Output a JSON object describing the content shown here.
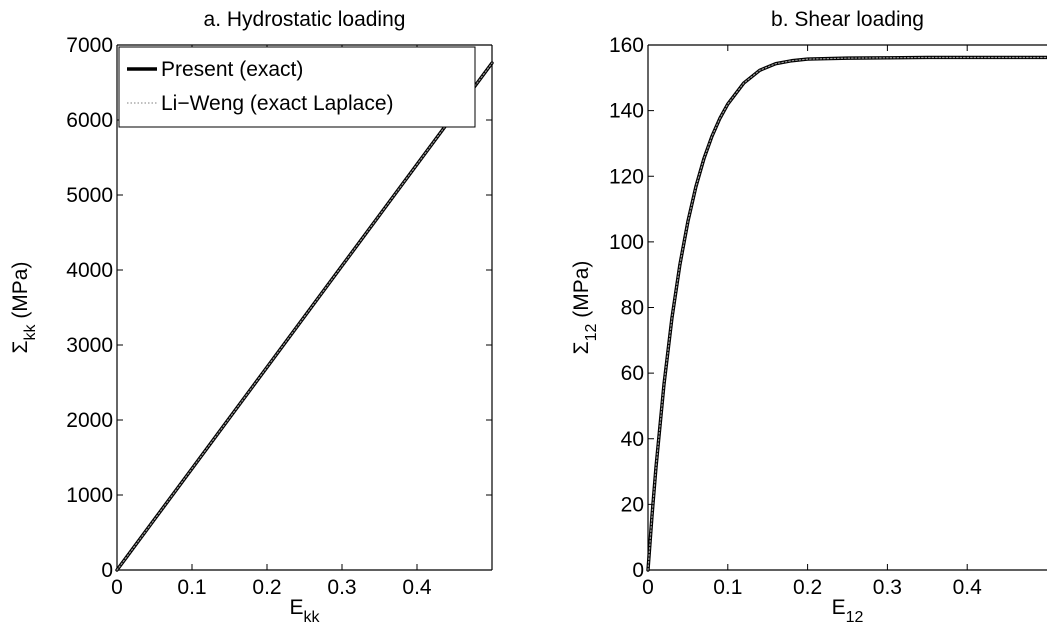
{
  "chart_data": [
    {
      "type": "line",
      "title": "a. Hydrostatic loading",
      "xlabel": {
        "main": "E",
        "sub": "kk",
        "suffix": ""
      },
      "ylabel": {
        "main": "Σ",
        "sub": "kk",
        "suffix": " (MPa)"
      },
      "xlim": [
        0,
        0.5
      ],
      "ylim": [
        0,
        7000
      ],
      "xticks": [
        0,
        0.1,
        0.2,
        0.3,
        0.4
      ],
      "xtick_labels": [
        "0",
        "0.1",
        "0.2",
        "0.3",
        "0.4"
      ],
      "yticks": [
        0,
        1000,
        2000,
        3000,
        4000,
        5000,
        6000,
        7000
      ],
      "ytick_labels": [
        "0",
        "1000",
        "2000",
        "3000",
        "4000",
        "5000",
        "6000",
        "7000"
      ],
      "grid": false,
      "legend": {
        "position": "top-left",
        "entries": [
          "Present (exact)",
          "Li−Weng (exact Laplace)"
        ]
      },
      "series": [
        {
          "name": "Present (exact)",
          "style": "solid",
          "color": "#000000",
          "x": [
            0,
            0.05,
            0.1,
            0.15,
            0.2,
            0.25,
            0.3,
            0.35,
            0.4,
            0.45,
            0.5
          ],
          "y": [
            0,
            676,
            1352,
            2028,
            2704,
            3380,
            4056,
            4732,
            5408,
            6084,
            6760
          ]
        },
        {
          "name": "Li−Weng (exact Laplace)",
          "style": "dotted",
          "color": "#999999",
          "x": [
            0,
            0.05,
            0.1,
            0.15,
            0.2,
            0.25,
            0.3,
            0.35,
            0.4,
            0.45,
            0.5
          ],
          "y": [
            0,
            676,
            1352,
            2028,
            2704,
            3380,
            4056,
            4732,
            5408,
            6084,
            6760
          ]
        }
      ]
    },
    {
      "type": "line",
      "title": "b. Shear loading",
      "xlabel": {
        "main": "E",
        "sub": "12",
        "suffix": ""
      },
      "ylabel": {
        "main": "Σ",
        "sub": "12",
        "suffix": " (MPa)"
      },
      "xlim": [
        0,
        0.5
      ],
      "ylim": [
        0,
        160
      ],
      "xticks": [
        0,
        0.1,
        0.2,
        0.3,
        0.4
      ],
      "xtick_labels": [
        "0",
        "0.1",
        "0.2",
        "0.3",
        "0.4"
      ],
      "yticks": [
        0,
        20,
        40,
        60,
        80,
        100,
        120,
        140,
        160
      ],
      "ytick_labels": [
        "0",
        "20",
        "40",
        "60",
        "80",
        "100",
        "120",
        "140",
        "160"
      ],
      "grid": false,
      "series": [
        {
          "name": "Present (exact)",
          "style": "solid",
          "color": "#000000",
          "x": [
            0,
            0.005,
            0.01,
            0.02,
            0.03,
            0.04,
            0.05,
            0.06,
            0.07,
            0.08,
            0.09,
            0.1,
            0.12,
            0.14,
            0.16,
            0.18,
            0.2,
            0.25,
            0.3,
            0.35,
            0.4,
            0.45,
            0.5
          ],
          "y": [
            0,
            16.5,
            31.3,
            56.5,
            76.8,
            93.1,
            106.2,
            116.8,
            125.3,
            132.1,
            137.6,
            142.0,
            148.4,
            152.3,
            154.3,
            155.2,
            155.7,
            156.0,
            156.1,
            156.2,
            156.2,
            156.2,
            156.2
          ]
        },
        {
          "name": "Li−Weng (exact Laplace)",
          "style": "dotted",
          "color": "#999999",
          "x": [
            0,
            0.005,
            0.01,
            0.02,
            0.03,
            0.04,
            0.05,
            0.06,
            0.07,
            0.08,
            0.09,
            0.1,
            0.12,
            0.14,
            0.16,
            0.18,
            0.2,
            0.25,
            0.3,
            0.35,
            0.4,
            0.45,
            0.5
          ],
          "y": [
            0,
            16.5,
            31.3,
            56.5,
            76.8,
            93.1,
            106.2,
            116.8,
            125.3,
            132.1,
            137.6,
            142.0,
            148.4,
            152.3,
            154.3,
            155.2,
            155.7,
            156.0,
            156.1,
            156.2,
            156.2,
            156.2,
            156.2
          ]
        }
      ]
    }
  ]
}
